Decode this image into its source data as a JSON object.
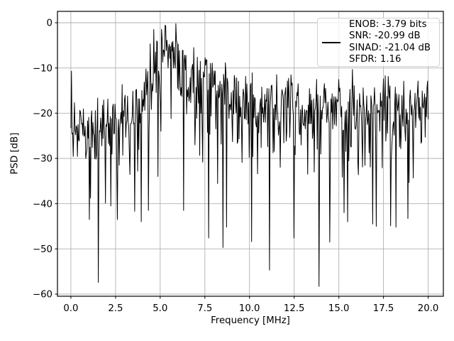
{
  "chart_data": {
    "type": "line",
    "title": "",
    "xlabel": "Frequency [MHz]",
    "ylabel": "PSD [dB]",
    "xlim": [
      -0.75,
      20.85
    ],
    "ylim": [
      -60.47,
      2.51
    ],
    "x_tick_values": [
      0,
      2.5,
      5,
      7.5,
      10,
      12.5,
      15,
      17.5,
      20
    ],
    "x_tick_labels": [
      "0.0",
      "2.5",
      "5.0",
      "7.5",
      "10.0",
      "12.5",
      "15.0",
      "17.5",
      "20.0"
    ],
    "y_tick_values": [
      0,
      -10,
      -20,
      -30,
      -40,
      -50,
      -60
    ],
    "y_tick_labels": [
      "0",
      "−10",
      "−20",
      "−30",
      "−40",
      "−50",
      "−60"
    ],
    "grid": true,
    "legend_position": "upper right",
    "colors": {
      "line": "#000000",
      "grid": "#b0b0b0",
      "spine": "#000000",
      "background": "#ffffff",
      "legend_border": "#d2d2d2"
    },
    "legend": {
      "lines": [
        "ENOB: -3.79 bits",
        "SNR: -20.99 dB",
        "SINAD: -21.04 dB",
        "SFDR: 1.16"
      ]
    },
    "series": [
      {
        "name": "PSD",
        "color": "#000000",
        "description": "Dense noisy PSD trace; broad signal hump peaking near 5.4 MHz at ~0 dB, secondary bump near 7.4 MHz, noise floor mass centered near -22 dB, DC spike at 0 MHz, edge spike at 20 MHz, sparse deep notches to -58 dB",
        "noise_model": {
          "seed": 11,
          "n_points": 600,
          "x_range": [
            0,
            20
          ],
          "max_db": -0.2,
          "min_db": -59.8,
          "floor_envelope_db": [
            [
              0.0,
              -21.5
            ],
            [
              0.8,
              -22.3
            ],
            [
              1.6,
              -22.3
            ],
            [
              2.6,
              -21.0
            ],
            [
              3.4,
              -19.3
            ],
            [
              4.0,
              -15.8
            ],
            [
              4.4,
              -12.3
            ],
            [
              4.8,
              -8.5
            ],
            [
              5.1,
              -6.0
            ],
            [
              5.35,
              -5.0
            ],
            [
              5.65,
              -5.2
            ],
            [
              5.95,
              -7.2
            ],
            [
              6.25,
              -9.8
            ],
            [
              6.6,
              -11.8
            ],
            [
              7.0,
              -12.5
            ],
            [
              7.2,
              -11.8
            ],
            [
              7.4,
              -10.5
            ],
            [
              7.7,
              -12.8
            ],
            [
              8.1,
              -13.8
            ],
            [
              8.7,
              -14.8
            ],
            [
              9.4,
              -16.0
            ],
            [
              10.2,
              -17.3
            ],
            [
              11.0,
              -18.2
            ],
            [
              12.0,
              -18.7
            ],
            [
              13.0,
              -18.9
            ],
            [
              14.5,
              -19.0
            ],
            [
              16.0,
              -19.0
            ],
            [
              17.5,
              -19.0
            ],
            [
              19.0,
              -19.0
            ],
            [
              20.0,
              -18.3
            ]
          ],
          "deep_notches": [
            [
              1.05,
              -43.5
            ],
            [
              1.52,
              -57.4
            ],
            [
              2.25,
              -40.5
            ],
            [
              2.6,
              -43.5
            ],
            [
              3.95,
              -44.0
            ],
            [
              4.35,
              -41.5
            ],
            [
              6.3,
              -41.5
            ],
            [
              7.7,
              -47.6
            ],
            [
              8.52,
              -49.7
            ],
            [
              8.72,
              -45.2
            ],
            [
              10.12,
              -48.4
            ],
            [
              11.12,
              -54.7
            ],
            [
              12.5,
              -47.6
            ],
            [
              13.9,
              -58.3
            ],
            [
              14.5,
              -48.5
            ],
            [
              15.3,
              -42.0
            ],
            [
              15.5,
              -44.0
            ],
            [
              16.9,
              -44.5
            ],
            [
              17.1,
              -45.0
            ],
            [
              17.9,
              -44.9
            ],
            [
              18.2,
              -45.2
            ],
            [
              18.85,
              -43.3
            ]
          ],
          "edge_spikes": [
            [
              0.02,
              -10.7
            ],
            [
              19.98,
              -12.9
            ]
          ]
        }
      }
    ]
  }
}
